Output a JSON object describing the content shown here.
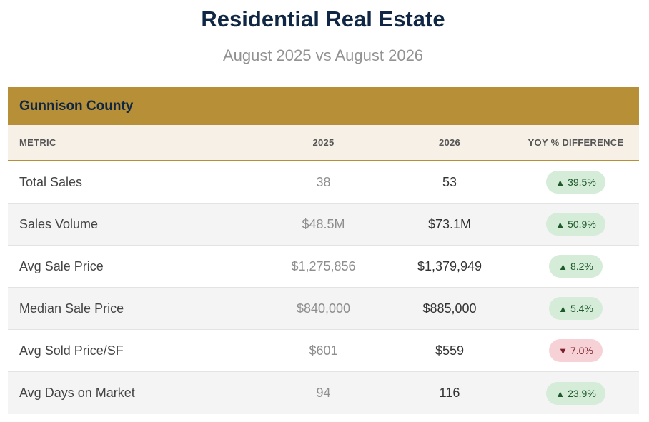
{
  "header": {
    "title": "Residential Real Estate",
    "subtitle": "August 2025 vs August 2026"
  },
  "table": {
    "county": "Gunnison County",
    "columns": [
      "METRIC",
      "2025",
      "2026",
      "YOY % DIFFERENCE"
    ],
    "rows": [
      {
        "metric": "Total Sales",
        "y2025": "38",
        "y2026": "53",
        "yoy": "39.5%",
        "direction": "up"
      },
      {
        "metric": "Sales Volume",
        "y2025": "$48.5M",
        "y2026": "$73.1M",
        "yoy": "50.9%",
        "direction": "up"
      },
      {
        "metric": "Avg Sale Price",
        "y2025": "$1,275,856",
        "y2026": "$1,379,949",
        "yoy": "8.2%",
        "direction": "up"
      },
      {
        "metric": "Median Sale Price",
        "y2025": "$840,000",
        "y2026": "$885,000",
        "yoy": "5.4%",
        "direction": "up"
      },
      {
        "metric": "Avg Sold Price/SF",
        "y2025": "$601",
        "y2026": "$559",
        "yoy": "7.0%",
        "direction": "down"
      },
      {
        "metric": "Avg Days on Market",
        "y2025": "94",
        "y2026": "116",
        "yoy": "23.9%",
        "direction": "up"
      }
    ]
  },
  "icons": {
    "up": "triangle-up-icon",
    "down": "triangle-down-icon"
  },
  "colors": {
    "title": "#0f2744",
    "accent": "#b68f37",
    "header_bg": "#f6f0e6",
    "positive_bg": "#d4ecd8",
    "positive_text": "#1f5a2a",
    "negative_bg": "#f6d2d6",
    "negative_text": "#7a1f2b"
  }
}
